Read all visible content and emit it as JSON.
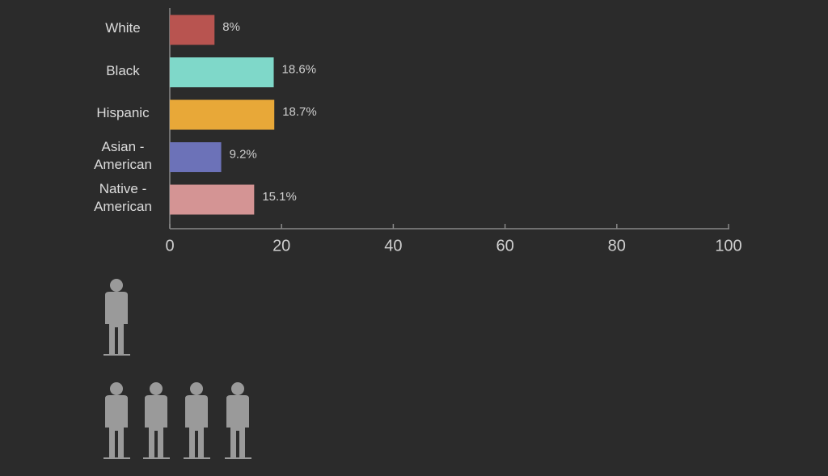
{
  "chart_data": {
    "type": "bar",
    "orientation": "horizontal",
    "categories": [
      "White",
      "Black",
      "Hispanic",
      "Asian - American",
      "Native - American"
    ],
    "values": [
      8,
      18.6,
      18.7,
      9.2,
      15.1
    ],
    "value_labels": [
      "8%",
      "18.6%",
      "18.7%",
      "9.2%",
      "15.1%"
    ],
    "colors": [
      "#b85450",
      "#7fd8c9",
      "#e8a838",
      "#6c72b8",
      "#d49494"
    ],
    "xlim": [
      0,
      100
    ],
    "xticks": [
      0,
      20,
      40,
      60,
      80,
      100
    ]
  }
}
